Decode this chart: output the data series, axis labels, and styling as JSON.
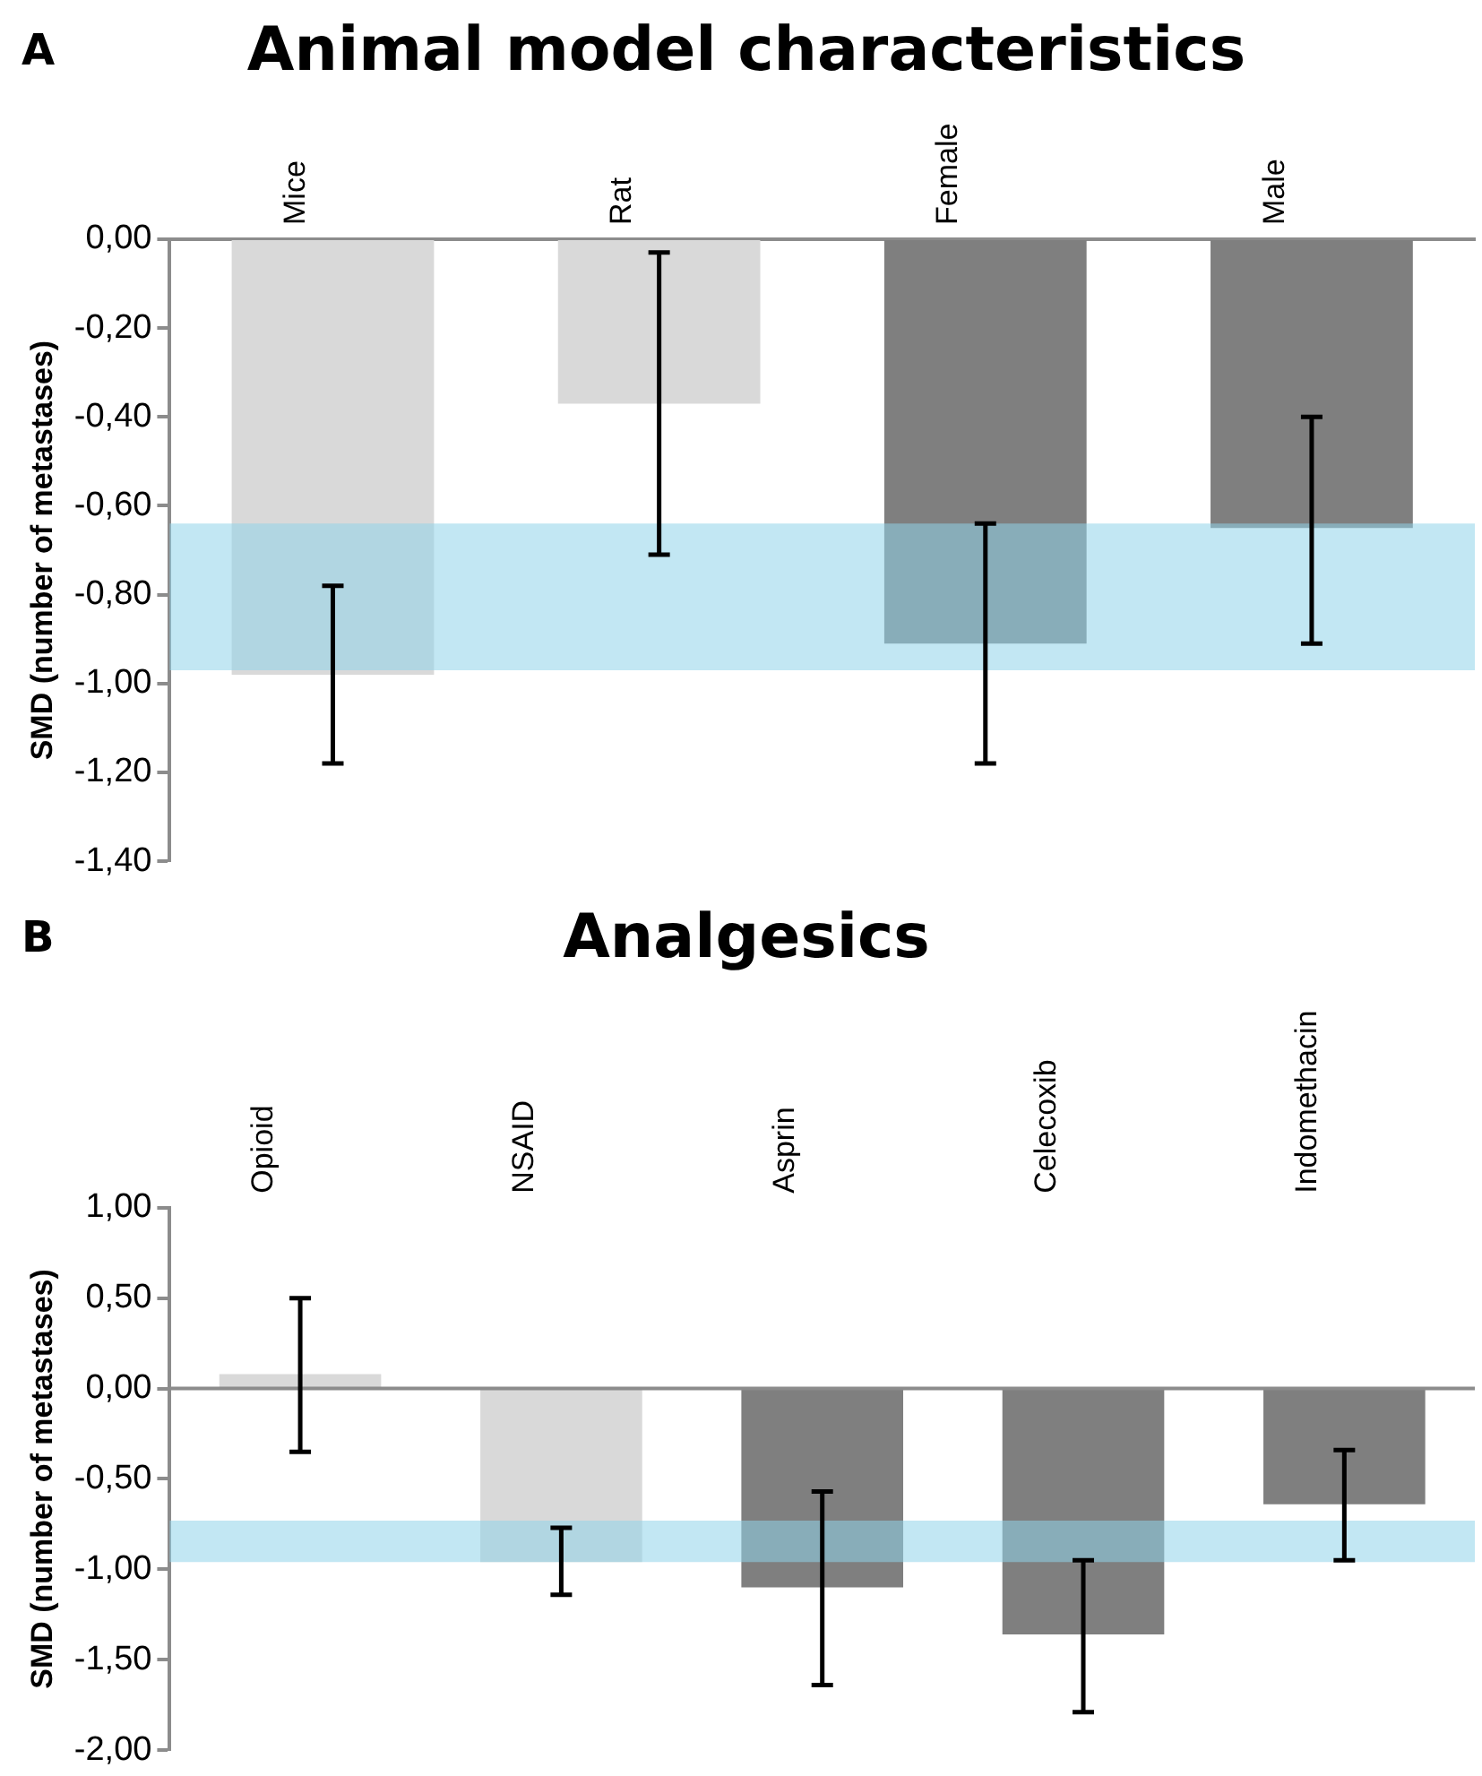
{
  "chart_data": [
    {
      "type": "bar",
      "title": "Animal model characteristics",
      "ylabel": "SMD (number of metastases)",
      "annotations": [
        "A"
      ],
      "categories": [
        "Mice",
        "Rat",
        "Female",
        "Male"
      ],
      "values": [
        -0.98,
        -0.37,
        -0.91,
        -0.65
      ],
      "colors": [
        "#d9d9d9",
        "#d9d9d9",
        "#7f7f7f",
        "#7f7f7f"
      ],
      "errors": [
        [
          -1.18,
          -0.78
        ],
        [
          -0.71,
          -0.03
        ],
        [
          -1.18,
          -0.64
        ],
        [
          -0.91,
          -0.4
        ]
      ],
      "bands": [
        {
          "axis": "y",
          "from": -0.64,
          "to": -0.97,
          "color": "#8fd3ea"
        }
      ],
      "ylim": [
        -1.4,
        0
      ],
      "yticks": [
        {
          "value": 0,
          "label": "0,00"
        },
        {
          "value": -0.2,
          "label": "-0,20"
        },
        {
          "value": -0.4,
          "label": "-0,40"
        },
        {
          "value": -0.6,
          "label": "-0,60"
        },
        {
          "value": -0.8,
          "label": "-0,80"
        },
        {
          "value": -1,
          "label": "-1,00"
        },
        {
          "value": -1.2,
          "label": "-1,20"
        },
        {
          "value": -1.4,
          "label": "-1,40"
        }
      ],
      "grid": false,
      "legend": false
    },
    {
      "type": "bar",
      "title": "Analgesics",
      "ylabel": "SMD (number of metastases)",
      "annotations": [
        "B"
      ],
      "categories": [
        "Opioid",
        "NSAID",
        "Asprin",
        "Celecoxib",
        "Indomethacin"
      ],
      "values": [
        0.08,
        -0.96,
        -1.1,
        -1.36,
        -0.64
      ],
      "colors": [
        "#d9d9d9",
        "#d9d9d9",
        "#7f7f7f",
        "#7f7f7f",
        "#7f7f7f"
      ],
      "errors": [
        [
          -0.35,
          0.5
        ],
        [
          -1.14,
          -0.77
        ],
        [
          -1.64,
          -0.57
        ],
        [
          -1.79,
          -0.95
        ],
        [
          -0.95,
          -0.34
        ]
      ],
      "bands": [
        {
          "axis": "y",
          "from": -0.73,
          "to": -0.96,
          "color": "#8fd3ea"
        }
      ],
      "ref_lines": [
        {
          "axis": "y",
          "value": 0,
          "color": "#8c8c8c"
        }
      ],
      "ylim": [
        -2,
        1
      ],
      "yticks": [
        {
          "value": 1,
          "label": "1,00"
        },
        {
          "value": 0.5,
          "label": "0,50"
        },
        {
          "value": 0,
          "label": "0,00"
        },
        {
          "value": -0.5,
          "label": "-0,50"
        },
        {
          "value": -1,
          "label": "-1,00"
        },
        {
          "value": -1.5,
          "label": "-1,50"
        },
        {
          "value": -2,
          "label": "-2,00"
        }
      ],
      "grid": false,
      "legend": false
    }
  ]
}
